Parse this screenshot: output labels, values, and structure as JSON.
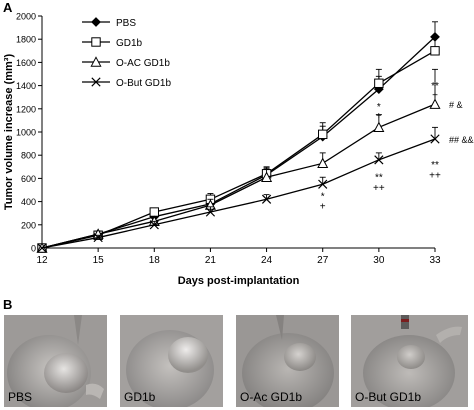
{
  "panel_a_letter": "A",
  "panel_b_letter": "B",
  "chart_data": {
    "type": "line",
    "title": "",
    "xlabel": "Days post-implantation",
    "ylabel": "Tumor volume increase (mm³)",
    "x": [
      12,
      15,
      18,
      21,
      24,
      27,
      30,
      33
    ],
    "xlim": [
      12,
      33
    ],
    "ylim": [
      0,
      2000
    ],
    "xticks": [
      12,
      15,
      18,
      21,
      24,
      27,
      30,
      33
    ],
    "yticks": [
      0,
      200,
      400,
      600,
      800,
      1000,
      1200,
      1400,
      1600,
      1800,
      2000
    ],
    "legend_position": "top-left",
    "grid": false,
    "series": [
      {
        "name": "PBS",
        "marker": "diamond-filled",
        "values": [
          0,
          120,
          270,
          380,
          630,
          960,
          1370,
          1820
        ],
        "errors": [
          0,
          25,
          35,
          40,
          60,
          90,
          110,
          130
        ]
      },
      {
        "name": "GD1b",
        "marker": "square-open",
        "values": [
          0,
          110,
          310,
          420,
          640,
          980,
          1420,
          1700
        ],
        "errors": [
          0,
          25,
          35,
          50,
          60,
          100,
          120,
          130
        ]
      },
      {
        "name": "O-AC GD1b",
        "marker": "triangle-open",
        "values": [
          0,
          120,
          230,
          370,
          610,
          730,
          1040,
          1240
        ],
        "errors": [
          0,
          25,
          35,
          50,
          70,
          90,
          110,
          300
        ]
      },
      {
        "name": "O-But GD1b",
        "marker": "x",
        "values": [
          0,
          90,
          200,
          310,
          420,
          550,
          760,
          940
        ],
        "errors": [
          0,
          20,
          30,
          45,
          40,
          60,
          60,
          100
        ]
      }
    ],
    "annotations": [
      {
        "x": 27,
        "y": 420,
        "text": "*"
      },
      {
        "x": 27,
        "y": 330,
        "text": "+"
      },
      {
        "x": 30,
        "y": 1190,
        "text": "*"
      },
      {
        "x": 30,
        "y": 1110,
        "text": "+"
      },
      {
        "x": 30,
        "y": 580,
        "text": "**"
      },
      {
        "x": 30,
        "y": 490,
        "text": "++"
      },
      {
        "x": 33,
        "y": 1370,
        "text": "**"
      },
      {
        "x": 33,
        "y": 1290,
        "text": "+"
      },
      {
        "x": 33,
        "y": 690,
        "text": "**"
      },
      {
        "x": 33,
        "y": 600,
        "text": "++"
      }
    ],
    "right_annotations": [
      {
        "y": 1240,
        "text": "# &"
      },
      {
        "y": 940,
        "text": "## &&"
      }
    ]
  },
  "photos": {
    "labels": [
      "PBS",
      "GD1b",
      "O-Ac GD1b",
      "O-But GD1b"
    ]
  }
}
